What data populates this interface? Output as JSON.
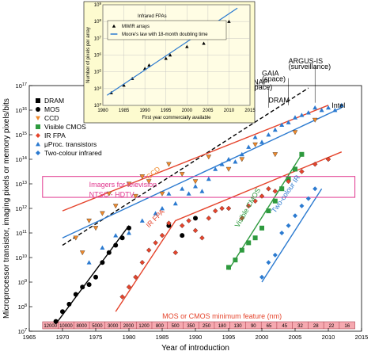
{
  "chart_data": [
    {
      "type": "scatter",
      "title": "",
      "xlabel": "Year of introduction",
      "ylabel": "Microprocessor transistor, imaging pixels or memory pixels/bits",
      "xlim": [
        1965,
        2015
      ],
      "x_ticks": [
        "1965",
        "1970",
        "1975",
        "1980",
        "1985",
        "1990",
        "1995",
        "2000",
        "2005",
        "2010",
        "2015"
      ],
      "ylim_exponent": [
        7,
        17
      ],
      "y_tick_base": "10",
      "y_tick_exponents": [
        "7",
        "8",
        "9",
        "10",
        "11",
        "12",
        "13",
        "14",
        "15",
        "16",
        "17"
      ],
      "y_scale": "log",
      "legend_position": "top-left",
      "series": [
        {
          "name": "DRAM",
          "marker": "square",
          "color": "#000000",
          "points": [
            [
              1985,
              16.6
            ],
            [
              1989,
              16.8
            ]
          ]
        },
        {
          "name": "MOS",
          "marker": "circle",
          "color": "#000000",
          "points": [
            [
              1969,
              7.4
            ],
            [
              1970,
              7.8
            ],
            [
              1971,
              8.1
            ],
            [
              1972,
              8.5
            ],
            [
              1973,
              8.8
            ],
            [
              1974,
              8.9
            ],
            [
              1975,
              9.2
            ],
            [
              1976,
              9.8
            ],
            [
              1977,
              10.2
            ],
            [
              1978,
              10.5
            ],
            [
              1979,
              10.8
            ],
            [
              1980,
              11.2
            ],
            [
              1986,
              11.3
            ],
            [
              1988,
              10.9
            ],
            [
              1990,
              11.6
            ]
          ]
        },
        {
          "name": "CCD",
          "marker": "triangle-down",
          "color": "#f08a2c",
          "points": [
            [
              1972,
              10.8
            ],
            [
              1973,
              10.2
            ],
            [
              1974,
              11.5
            ],
            [
              1975,
              11.2
            ],
            [
              1976,
              11.8
            ],
            [
              1977,
              12.6
            ],
            [
              1978,
              12.1
            ],
            [
              1980,
              13.0
            ],
            [
              1981,
              12.5
            ],
            [
              1982,
              13.3
            ],
            [
              1983,
              13.1
            ],
            [
              1985,
              12.6
            ],
            [
              1986,
              13.8
            ],
            [
              1988,
              13.4
            ],
            [
              1990,
              13.1
            ],
            [
              1992,
              14.1
            ],
            [
              1995,
              13.6
            ],
            [
              1997,
              14.0
            ],
            [
              1999,
              14.6
            ],
            [
              2002,
              14.2
            ],
            [
              2005,
              15.1
            ],
            [
              2008,
              15.6
            ]
          ]
        },
        {
          "name": "Visible CMOS",
          "marker": "square",
          "color": "#2e9a3e",
          "points": [
            [
              1995,
              9.6
            ],
            [
              1996,
              9.9
            ],
            [
              1997,
              10.3
            ],
            [
              1998,
              10.6
            ],
            [
              1999,
              10.8
            ],
            [
              2000,
              11.2
            ],
            [
              2001,
              11.9
            ],
            [
              2002,
              12.3
            ],
            [
              2003,
              12.8
            ],
            [
              2004,
              13.2
            ],
            [
              2005,
              13.6
            ],
            [
              2006,
              14.2
            ]
          ]
        },
        {
          "name": "IR FPA",
          "marker": "diamond",
          "color": "#e5442c",
          "points": [
            [
              1979,
              8.4
            ],
            [
              1980,
              8.8
            ],
            [
              1981,
              9.2
            ],
            [
              1982,
              9.8
            ],
            [
              1983,
              10.3
            ],
            [
              1984,
              10.6
            ],
            [
              1985,
              10.9
            ],
            [
              1986,
              11.4
            ],
            [
              1987,
              10.2
            ],
            [
              1988,
              11.3
            ],
            [
              1989,
              11.5
            ],
            [
              1990,
              11.1
            ],
            [
              1991,
              10.8
            ],
            [
              1992,
              11.6
            ],
            [
              1993,
              11.9
            ],
            [
              1994,
              12.0
            ],
            [
              1995,
              12.0
            ],
            [
              1997,
              11.6
            ],
            [
              1998,
              12.1
            ],
            [
              1999,
              12.3
            ],
            [
              2000,
              12.5
            ],
            [
              2001,
              12.8
            ],
            [
              2002,
              12.7
            ],
            [
              2004,
              13.1
            ],
            [
              2006,
              13.5
            ],
            [
              2008,
              13.8
            ],
            [
              2010,
              14.0
            ]
          ]
        },
        {
          "name": "μProc. transistors",
          "marker": "triangle-up",
          "color": "#2b7ad0",
          "points": [
            [
              1974,
              9.8
            ],
            [
              1976,
              10.4
            ],
            [
              1978,
              10.9
            ],
            [
              1980,
              11.0
            ],
            [
              1982,
              11.5
            ],
            [
              1984,
              11.8
            ],
            [
              1985,
              12.0
            ],
            [
              1986,
              12.6
            ],
            [
              1987,
              12.2
            ],
            [
              1988,
              12.8
            ],
            [
              1989,
              12.6
            ],
            [
              1990,
              12.9
            ],
            [
              1991,
              12.7
            ],
            [
              1992,
              13.2
            ],
            [
              1993,
              13.6
            ],
            [
              1994,
              13.8
            ],
            [
              1995,
              14.0
            ],
            [
              1996,
              13.9
            ],
            [
              1997,
              14.2
            ],
            [
              1998,
              14.5
            ],
            [
              1999,
              14.9
            ],
            [
              2000,
              14.7
            ],
            [
              2001,
              15.0
            ],
            [
              2002,
              15.2
            ],
            [
              2003,
              15.4
            ],
            [
              2004,
              15.5
            ],
            [
              2005,
              15.7
            ],
            [
              2006,
              15.8
            ],
            [
              2007,
              15.9
            ],
            [
              2008,
              16.1
            ],
            [
              2009,
              16.0
            ],
            [
              2010,
              16.1
            ],
            [
              2011,
              16.0
            ],
            [
              2012,
              16.2
            ]
          ]
        },
        {
          "name": "Two-colour infrared",
          "marker": "diamond",
          "color": "#2b7ad0",
          "points": [
            [
              2000,
              9.2
            ],
            [
              2001,
              9.8
            ],
            [
              2002,
              10.1
            ],
            [
              2003,
              11.0
            ],
            [
              2004,
              11.3
            ],
            [
              2005,
              11.7
            ],
            [
              2006,
              12.1
            ],
            [
              2007,
              12.4
            ],
            [
              2008,
              12.8
            ]
          ]
        }
      ],
      "trend_lines": [
        {
          "label": "DRAM",
          "color": "#000000",
          "dashed": true,
          "points": [
            [
              1970,
              10.5
            ],
            [
              2007,
              16.9
            ]
          ]
        },
        {
          "label": "CCD",
          "color": "#e5442c",
          "points": [
            [
              1970,
              11.9
            ],
            [
              2010,
              16.2
            ]
          ]
        },
        {
          "label": "MOS",
          "color": "#000000",
          "points": [
            [
              1969,
              7.3
            ],
            [
              1980,
              11.3
            ]
          ]
        },
        {
          "label": "μProc.",
          "color": "#2b7ad0",
          "points": [
            [
              1970,
              10.8
            ],
            [
              2012,
              16.1
            ]
          ]
        },
        {
          "label": "IR FPA",
          "color": "#e5442c",
          "points": [
            [
              1978,
              7.8
            ],
            [
              1987,
              11.5
            ],
            [
              2012,
              14.3
            ]
          ]
        },
        {
          "label": "Visible CMOS",
          "color": "#2e9a3e",
          "points": [
            [
              1995,
              9.5
            ],
            [
              2006,
              14.2
            ]
          ]
        },
        {
          "label": "Two-colour IR",
          "color": "#2b7ad0",
          "points": [
            [
              2000,
              9.0
            ],
            [
              2009,
              12.8
            ]
          ]
        }
      ],
      "annotations": [
        {
          "text": "Imagers for television",
          "color": "#e0368e"
        },
        {
          "text": "NTSC - HDTV",
          "color": "#e0368e"
        },
        {
          "text": "DRAM",
          "color": "#000000"
        },
        {
          "text": "CCD",
          "color": "#f08a2c"
        },
        {
          "text": "IR FPA",
          "color": "#e5442c"
        },
        {
          "text": "Visible CMOS",
          "color": "#2e9a3e"
        },
        {
          "text": "Two-colour IR",
          "color": "#2b7ad0"
        },
        {
          "text": "ARGUS-IS",
          "color": "#000000"
        },
        {
          "text": "(surveillance)",
          "color": "#000000"
        },
        {
          "text": "GAIA",
          "color": "#000000"
        },
        {
          "text": "(space)",
          "color": "#000000"
        },
        {
          "text": "SNAP",
          "color": "#000000"
        },
        {
          "text": "(space)",
          "color": "#000000"
        },
        {
          "text": "Intel",
          "color": "#000000"
        }
      ],
      "feature_title": "MOS or CMOS minimum feature (nm)",
      "feature_sizes": [
        "12000",
        "10000",
        "8000",
        "5000",
        "3000",
        "2000",
        "1200",
        "800",
        "500",
        "350",
        "250",
        "180",
        "130",
        "90",
        "65",
        "45",
        "32",
        "28",
        "22",
        "16"
      ]
    },
    {
      "type": "scatter",
      "title": "Infrared FPAs",
      "xlabel": "First year commercially available",
      "ylabel": "Number of pixels per array",
      "xlim": [
        1980,
        2015
      ],
      "x_ticks": [
        "1980",
        "1985",
        "1990",
        "1995",
        "2000",
        "2005",
        "2010",
        "2015"
      ],
      "y_scale": "log",
      "y_tick_base": "10",
      "y_tick_exponents": [
        "3",
        "4",
        "5",
        "6",
        "7",
        "8",
        "9"
      ],
      "ylim_exponent": [
        3,
        9
      ],
      "legend_position": "top-left",
      "series": [
        {
          "name": "MWIR arrays",
          "marker": "triangle-up",
          "color": "#000000",
          "points": [
            [
              1982,
              3.75
            ],
            [
              1985,
              4.2
            ],
            [
              1987,
              4.6
            ],
            [
              1990,
              5.2
            ],
            [
              1991,
              5.4
            ],
            [
              1995,
              5.8
            ],
            [
              1996,
              6.0
            ],
            [
              2000,
              6.5
            ],
            [
              2004,
              6.7
            ],
            [
              2005,
              7.3
            ],
            [
              2010,
              8.0
            ]
          ]
        },
        {
          "name": "Moore's law with 18-month doubling time",
          "marker": "line",
          "color": "#2b7ad0",
          "points": [
            [
              1981,
              3.6
            ],
            [
              2012,
              8.8
            ]
          ]
        }
      ]
    }
  ]
}
